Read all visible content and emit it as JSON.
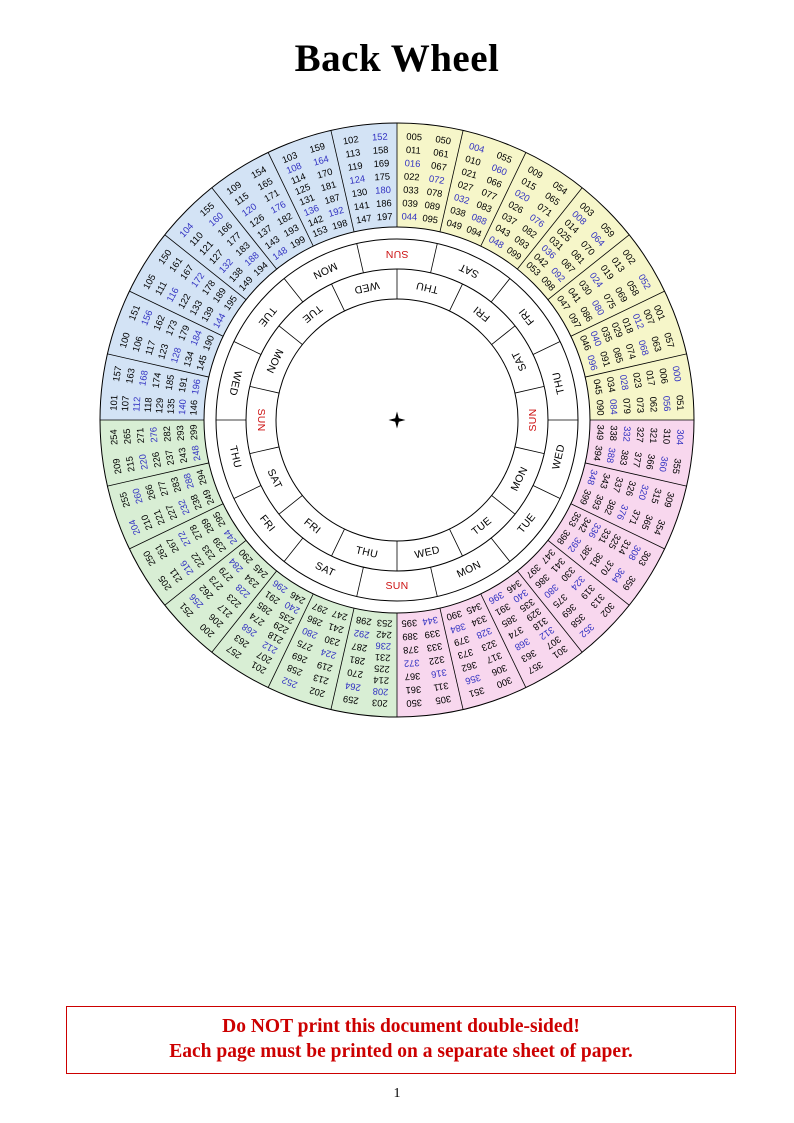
{
  "title": "Back Wheel",
  "page_number": "1",
  "warning": {
    "line1": "Do NOT print this document double-sided!",
    "line2": "Each page must be printed on a separate sheet of paper."
  },
  "wheel": {
    "colors": {
      "century_0": "#f6f6c9",
      "century_1": "#d3e3f5",
      "century_2": "#d8eed4",
      "century_3": "#f8d7ee",
      "leap_year": "#3232c2",
      "common_year": "#000000",
      "sunday": "#cc1111",
      "line": "#000000"
    },
    "leap_rule": "numbers divisible by 4 are shown in blue, except 100, 200, 300 (000 is blue)",
    "quadrants": [
      {
        "name": "years-000-099",
        "color_key": "century_0",
        "start_deg": 0
      },
      {
        "name": "years-300-399",
        "color_key": "century_3",
        "start_deg": 90
      },
      {
        "name": "years-200-299",
        "color_key": "century_2",
        "start_deg": 180
      },
      {
        "name": "years-100-199",
        "color_key": "century_1",
        "start_deg": 270
      }
    ],
    "sectors": [
      {
        "century": 0,
        "numbers": [
          "005",
          "011",
          "016",
          "022",
          "033",
          "039",
          "044",
          "050",
          "061",
          "067",
          "072",
          "078",
          "089",
          "095"
        ]
      },
      {
        "century": 0,
        "numbers": [
          "004",
          "010",
          "021",
          "027",
          "032",
          "038",
          "049",
          "055",
          "060",
          "066",
          "077",
          "083",
          "088",
          "094"
        ]
      },
      {
        "century": 0,
        "numbers": [
          "009",
          "015",
          "020",
          "026",
          "037",
          "043",
          "048",
          "054",
          "065",
          "071",
          "076",
          "082",
          "093",
          "099"
        ]
      },
      {
        "century": 0,
        "numbers": [
          "003",
          "008",
          "014",
          "025",
          "031",
          "036",
          "042",
          "053",
          "059",
          "064",
          "070",
          "081",
          "087",
          "092",
          "098"
        ]
      },
      {
        "century": 0,
        "numbers": [
          "002",
          "013",
          "019",
          "024",
          "030",
          "041",
          "047",
          "052",
          "058",
          "069",
          "075",
          "080",
          "086",
          "097"
        ]
      },
      {
        "century": 0,
        "numbers": [
          "001",
          "007",
          "012",
          "018",
          "029",
          "035",
          "040",
          "046",
          "057",
          "063",
          "068",
          "074",
          "085",
          "091",
          "096"
        ]
      },
      {
        "century": 0,
        "numbers": [
          "000",
          "006",
          "017",
          "023",
          "028",
          "034",
          "045",
          "051",
          "056",
          "062",
          "073",
          "079",
          "084",
          "090"
        ]
      },
      {
        "century": 3,
        "numbers": [
          "304",
          "310",
          "321",
          "327",
          "332",
          "338",
          "349",
          "355",
          "360",
          "366",
          "377",
          "383",
          "388",
          "394"
        ]
      },
      {
        "century": 3,
        "numbers": [
          "309",
          "315",
          "320",
          "326",
          "337",
          "343",
          "348",
          "354",
          "365",
          "371",
          "376",
          "382",
          "393",
          "399"
        ]
      },
      {
        "century": 3,
        "numbers": [
          "303",
          "308",
          "314",
          "325",
          "331",
          "336",
          "342",
          "353",
          "359",
          "364",
          "370",
          "381",
          "387",
          "392",
          "398"
        ]
      },
      {
        "century": 3,
        "numbers": [
          "302",
          "313",
          "319",
          "324",
          "330",
          "341",
          "347",
          "352",
          "358",
          "369",
          "375",
          "380",
          "386",
          "397"
        ]
      },
      {
        "century": 3,
        "numbers": [
          "301",
          "307",
          "312",
          "318",
          "329",
          "335",
          "340",
          "346",
          "357",
          "363",
          "368",
          "374",
          "385",
          "391",
          "396"
        ]
      },
      {
        "century": 3,
        "numbers": [
          "300",
          "306",
          "317",
          "323",
          "328",
          "334",
          "345",
          "351",
          "356",
          "362",
          "373",
          "379",
          "384",
          "390"
        ]
      },
      {
        "century": 3,
        "numbers": [
          "305",
          "311",
          "316",
          "322",
          "333",
          "339",
          "344",
          "350",
          "361",
          "367",
          "372",
          "378",
          "389",
          "395"
        ]
      },
      {
        "century": 2,
        "numbers": [
          "203",
          "208",
          "214",
          "225",
          "231",
          "236",
          "242",
          "253",
          "259",
          "264",
          "270",
          "281",
          "287",
          "292",
          "298"
        ]
      },
      {
        "century": 2,
        "numbers": [
          "202",
          "213",
          "219",
          "224",
          "230",
          "241",
          "247",
          "252",
          "258",
          "269",
          "275",
          "280",
          "286",
          "297"
        ]
      },
      {
        "century": 2,
        "numbers": [
          "201",
          "207",
          "212",
          "218",
          "229",
          "235",
          "240",
          "246",
          "257",
          "263",
          "268",
          "274",
          "285",
          "291",
          "296"
        ]
      },
      {
        "century": 2,
        "numbers": [
          "200",
          "206",
          "217",
          "223",
          "228",
          "234",
          "245",
          "251",
          "256",
          "262",
          "273",
          "279",
          "284",
          "290"
        ]
      },
      {
        "century": 2,
        "numbers": [
          "205",
          "211",
          "216",
          "222",
          "233",
          "239",
          "244",
          "250",
          "261",
          "267",
          "272",
          "278",
          "289",
          "295"
        ]
      },
      {
        "century": 2,
        "numbers": [
          "204",
          "210",
          "221",
          "227",
          "232",
          "238",
          "249",
          "255",
          "260",
          "266",
          "277",
          "283",
          "288",
          "294"
        ]
      },
      {
        "century": 2,
        "numbers": [
          "209",
          "215",
          "220",
          "226",
          "237",
          "243",
          "248",
          "254",
          "265",
          "271",
          "276",
          "282",
          "293",
          "299"
        ]
      },
      {
        "century": 1,
        "numbers": [
          "101",
          "107",
          "112",
          "118",
          "129",
          "135",
          "140",
          "146",
          "157",
          "163",
          "168",
          "174",
          "185",
          "191",
          "196"
        ]
      },
      {
        "century": 1,
        "numbers": [
          "100",
          "106",
          "117",
          "123",
          "128",
          "134",
          "145",
          "151",
          "156",
          "162",
          "173",
          "179",
          "184",
          "190"
        ]
      },
      {
        "century": 1,
        "numbers": [
          "105",
          "111",
          "116",
          "122",
          "133",
          "139",
          "144",
          "150",
          "161",
          "167",
          "172",
          "178",
          "189",
          "195"
        ]
      },
      {
        "century": 1,
        "numbers": [
          "104",
          "110",
          "121",
          "127",
          "132",
          "138",
          "149",
          "155",
          "160",
          "166",
          "177",
          "183",
          "188",
          "194"
        ]
      },
      {
        "century": 1,
        "numbers": [
          "109",
          "115",
          "120",
          "126",
          "137",
          "143",
          "148",
          "154",
          "165",
          "171",
          "176",
          "182",
          "193",
          "199"
        ]
      },
      {
        "century": 1,
        "numbers": [
          "103",
          "108",
          "114",
          "125",
          "131",
          "136",
          "142",
          "153",
          "159",
          "164",
          "170",
          "181",
          "187",
          "192",
          "198"
        ]
      },
      {
        "century": 1,
        "numbers": [
          "102",
          "113",
          "119",
          "124",
          "130",
          "141",
          "147",
          "152",
          "158",
          "169",
          "175",
          "180",
          "186",
          "197"
        ]
      }
    ],
    "outer_day_ring": {
      "start_deg": 0,
      "days": [
        "SUN",
        "SAT",
        "FRI",
        "THU",
        "WED",
        "TUE",
        "MON",
        "SUN",
        "SAT",
        "FRI",
        "THU",
        "WED",
        "TUE",
        "MON"
      ]
    },
    "inner_day_ring": {
      "start_deg": 270,
      "days": [
        "SUN",
        "MON",
        "TUE",
        "WED",
        "THU",
        "FRI",
        "SAT",
        "SUN",
        "MON",
        "TUE",
        "WED",
        "THU",
        "FRI",
        "SAT"
      ]
    },
    "center_marker": "four-pointed-star"
  }
}
